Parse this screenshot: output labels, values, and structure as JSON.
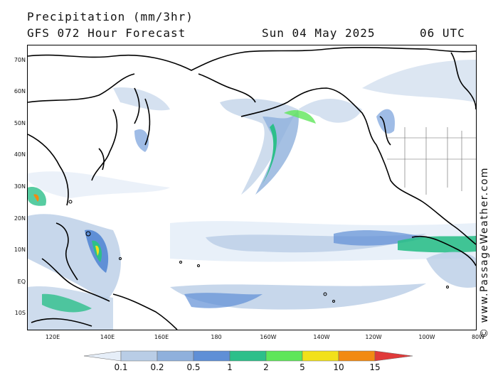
{
  "header": {
    "title": "Precipitation (mm/3hr)",
    "subtitle": "GFS 072 Hour Forecast",
    "date": "Sun 04 May 2025",
    "time": "06 UTC"
  },
  "map": {
    "lat_labels": [
      "70N",
      "60N",
      "50N",
      "40N",
      "30N",
      "20N",
      "10N",
      "EQ",
      "10S"
    ],
    "lon_labels": [
      "120E",
      "140E",
      "160E",
      "180",
      "160W",
      "140W",
      "120W",
      "100W",
      "80W"
    ],
    "land_color": "#ffffff",
    "coast_color": "#000000"
  },
  "credit": "© www.PassageWeather.com",
  "colorbar": {
    "ticks": [
      "0.1",
      "0.2",
      "0.5",
      "1",
      "2",
      "5",
      "10",
      "15"
    ],
    "colors": [
      "#e6eef8",
      "#b9cde6",
      "#8fb0dc",
      "#5f8fd6",
      "#2dbf8a",
      "#5fe65a",
      "#f2e11a",
      "#f28a12",
      "#e03a3a"
    ]
  }
}
